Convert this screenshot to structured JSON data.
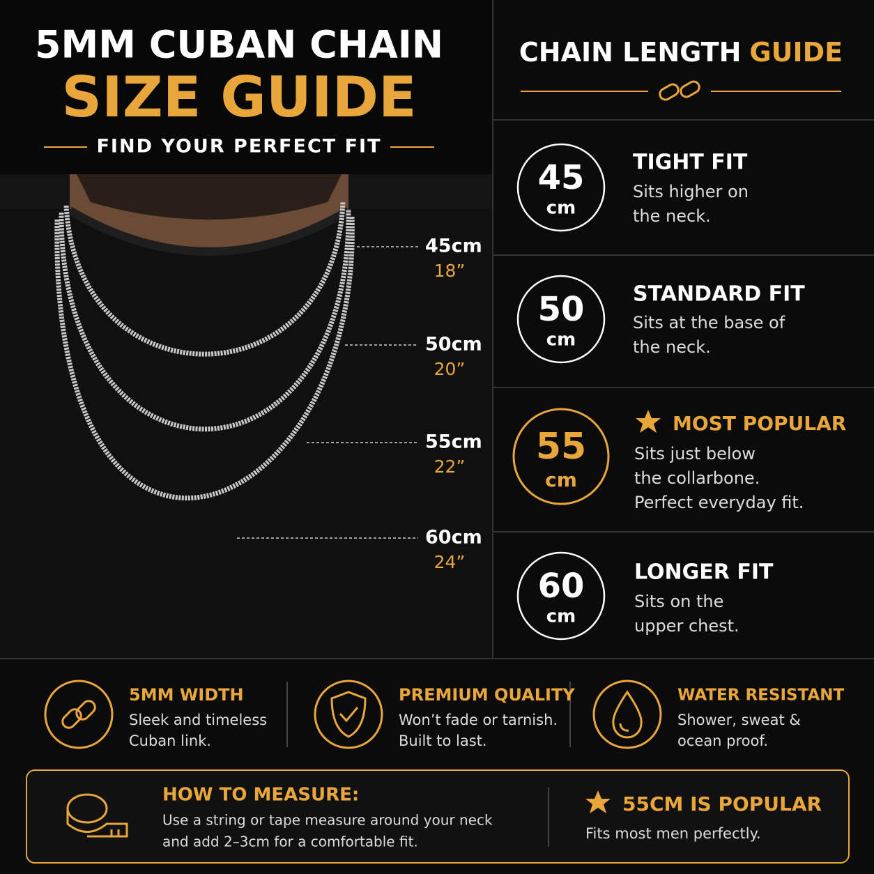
{
  "header": {
    "title": "5MM CUBAN CHAIN",
    "title_accent": "SIZE GUIDE",
    "subtitle": "FIND YOUR PERFECT FIT"
  },
  "photo_labels": [
    {
      "cm": "45cm",
      "inch": "18”"
    },
    {
      "cm": "50cm",
      "inch": "20”"
    },
    {
      "cm": "55cm",
      "inch": "22”"
    },
    {
      "cm": "60cm",
      "inch": "24”"
    }
  ],
  "guide": {
    "title": "CHAIN LENGTH",
    "title_accent": "GUIDE",
    "items": [
      {
        "number": "45",
        "unit": "cm",
        "heading": "TIGHT FIT",
        "lines": [
          "Sits higher on",
          "the neck."
        ]
      },
      {
        "number": "50",
        "unit": "cm",
        "heading": "STANDARD FIT",
        "lines": [
          "Sits at the base of",
          "the neck."
        ]
      },
      {
        "number": "55",
        "unit": "cm",
        "heading": "MOST POPULAR",
        "lines": [
          "Sits just below",
          "the collarbone.",
          "Perfect everyday fit."
        ]
      },
      {
        "number": "60",
        "unit": "cm",
        "heading": "LONGER FIT",
        "lines": [
          "Sits on the",
          "upper chest."
        ]
      }
    ]
  },
  "features": [
    {
      "title": "5MM WIDTH",
      "lines": [
        "Sleek and timeless",
        "Cuban link."
      ]
    },
    {
      "title": "PREMIUM QUALITY",
      "lines": [
        "Won’t fade or tarnish.",
        "Built to last."
      ]
    },
    {
      "title": "WATER RESISTANT",
      "lines": [
        "Shower, sweat &",
        "ocean proof."
      ]
    }
  ],
  "measure": {
    "title": "HOW TO MEASURE:",
    "lines": [
      "Use a string or tape measure around your neck",
      "and add 2–3cm for a comfortable fit."
    ]
  },
  "popular": {
    "title": "55CM IS POPULAR",
    "text": "Fits most men perfectly."
  }
}
